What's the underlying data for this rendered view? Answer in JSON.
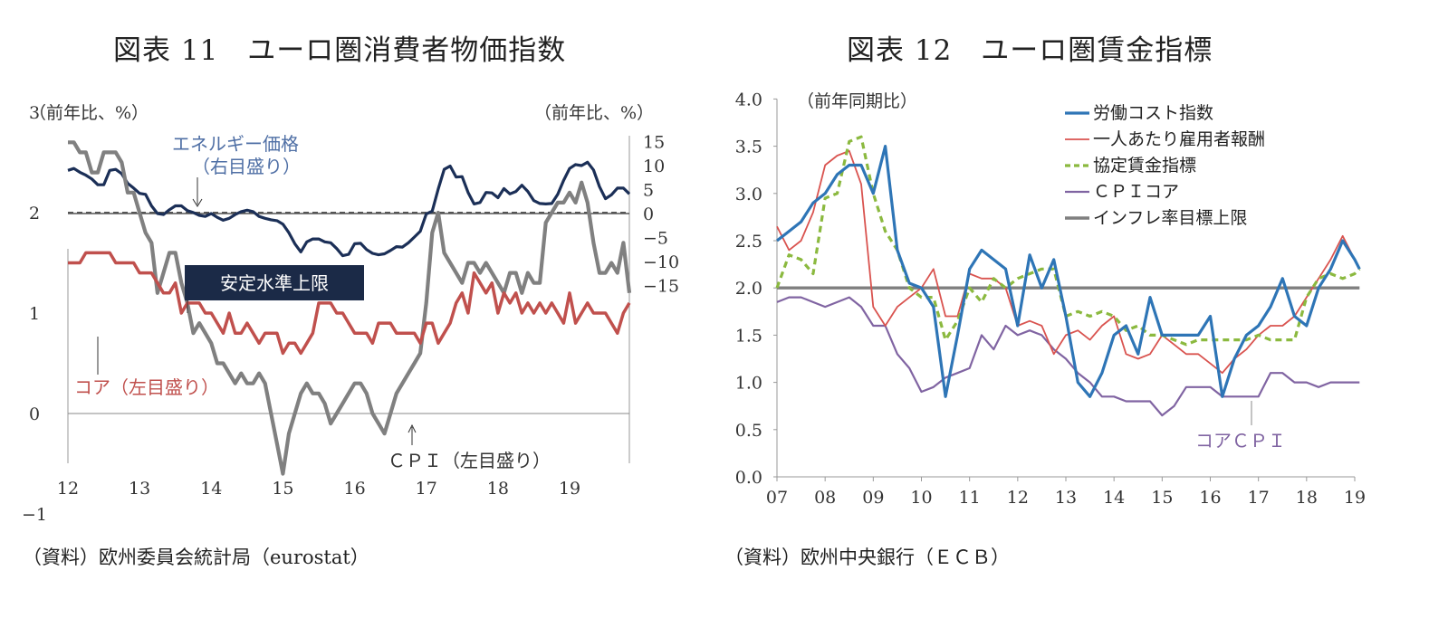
{
  "left_panel": {
    "title": "図表 11　ユーロ圏消費者物価指数",
    "source": "（資料）欧州委員会統計局（eurostat）"
  },
  "right_panel": {
    "title": "図表 12　ユーロ圏賃金指標",
    "source": "（資料）欧州中央銀行（ＥＣＢ）"
  },
  "chart_data": [
    {
      "type": "line",
      "unit_left": "（前年比、%）",
      "unit_right": "（前年比、%）",
      "left_axis": {
        "ticks": [
          3,
          2,
          1,
          0,
          -1
        ],
        "ticklabels": [
          "3",
          "2",
          "1",
          "0",
          "−1"
        ]
      },
      "right_axis": {
        "ticks": [
          15,
          10,
          5,
          0,
          -5,
          -10,
          -15
        ],
        "ticklabels": [
          "15",
          "10",
          "5",
          "0",
          "−5",
          "−10",
          "−15"
        ]
      },
      "x_ticklabels": [
        "12",
        "13",
        "14",
        "15",
        "16",
        "17",
        "18",
        "19"
      ],
      "threshold": {
        "value": 2,
        "label": "安定水準上限",
        "color": "#555555"
      },
      "annotations": {
        "energy": [
          "エネルギー価格",
          "（右目盛り）"
        ],
        "core": "コア（左目盛り）",
        "cpi": "ＣＰＩ（左目盛り）"
      },
      "colors": {
        "energy": "#1b2f57",
        "core": "#c0504d",
        "cpi": "#808080",
        "label_energy": "#4f6fa5",
        "label_core": "#c0504d",
        "callout_bg": "#1b2a47"
      },
      "series": [
        {
          "key": "energy",
          "axis": "right",
          "values": [
            9,
            9.4,
            8.6,
            8,
            7.2,
            6,
            6,
            9,
            9.2,
            8.3,
            6.3,
            5.3,
            4.2,
            4,
            1.6,
            0,
            -0.2,
            0.8,
            1.6,
            1.6,
            0.6,
            0.2,
            -0.4,
            -0.6,
            0,
            -0.8,
            -1.4,
            -1,
            -0.2,
            0.4,
            0.7,
            0.4,
            -0.6,
            -1,
            -1.3,
            -1.5,
            -2.2,
            -4,
            -6.3,
            -8,
            -5.9,
            -5.3,
            -5.3,
            -5.9,
            -6.1,
            -7.3,
            -8.8,
            -8.5,
            -6.3,
            -6.2,
            -7.5,
            -8.3,
            -8.6,
            -8.4,
            -7.7,
            -6.9,
            -7,
            -6.1,
            -4.9,
            -3.7,
            -0.1,
            0.5,
            5.1,
            9.2,
            9.9,
            7.6,
            7.7,
            4.4,
            2,
            2.3,
            4.4,
            4.3,
            3.3,
            5.2,
            4.1,
            4.6,
            5.9,
            4.6,
            2.7,
            2.1,
            2,
            2.1,
            4,
            6.9,
            9.4,
            10.2,
            10,
            10.7,
            9.1,
            5.6,
            3.1,
            3.9,
            5.3,
            5.3,
            4.1
          ]
        },
        {
          "key": "cpi",
          "axis": "left",
          "values": [
            2.7,
            2.7,
            2.6,
            2.6,
            2.4,
            2.4,
            2.6,
            2.6,
            2.6,
            2.5,
            2.2,
            2.2,
            2,
            1.8,
            1.7,
            1.2,
            1.4,
            1.6,
            1.6,
            1.3,
            1.1,
            0.8,
            0.9,
            0.8,
            0.7,
            0.5,
            0.5,
            0.4,
            0.3,
            0.4,
            0.3,
            0.3,
            0.4,
            0.3,
            0,
            -0.3,
            -0.6,
            -0.2,
            0,
            0.2,
            0.3,
            0.2,
            0.2,
            0.1,
            -0.1,
            0,
            0.1,
            0.2,
            0.3,
            0.3,
            0.2,
            0,
            -0.1,
            -0.2,
            0,
            0.2,
            0.3,
            0.4,
            0.5,
            0.6,
            1.1,
            1.8,
            2,
            1.6,
            1.5,
            1.4,
            1.3,
            1.5,
            1.5,
            1.4,
            1.5,
            1.4,
            1.3,
            1.2,
            1.4,
            1.4,
            1.2,
            1.4,
            1.3,
            1.3,
            1.9,
            2,
            2.1,
            2.1,
            2.2,
            2.1,
            2.3,
            2.1,
            1.7,
            1.4,
            1.4,
            1.5,
            1.4,
            1.7,
            1.2
          ]
        },
        {
          "key": "core",
          "axis": "left",
          "values": [
            1.5,
            1.5,
            1.5,
            1.6,
            1.6,
            1.6,
            1.6,
            1.6,
            1.5,
            1.5,
            1.5,
            1.5,
            1.4,
            1.4,
            1.4,
            1.3,
            1.2,
            1.2,
            1.3,
            1,
            1.1,
            1.1,
            1.1,
            1,
            1,
            0.9,
            0.8,
            1,
            0.8,
            0.8,
            0.9,
            0.8,
            0.7,
            0.8,
            0.8,
            0.8,
            0.6,
            0.7,
            0.7,
            0.6,
            0.7,
            0.8,
            1.1,
            1.1,
            1.1,
            1,
            1,
            0.9,
            0.8,
            0.8,
            0.8,
            0.7,
            0.9,
            0.9,
            0.9,
            0.8,
            0.8,
            0.8,
            0.8,
            0.7,
            0.9,
            0.9,
            0.7,
            0.8,
            0.9,
            1.1,
            1.2,
            1,
            1.4,
            1.3,
            1.2,
            1.3,
            1,
            1.2,
            1.1,
            1.2,
            1,
            1.1,
            1,
            1.1,
            1,
            1.1,
            1,
            0.9,
            1.2,
            0.9,
            1,
            1.1,
            1,
            1,
            1,
            0.9,
            0.8,
            1,
            1.1
          ]
        }
      ]
    },
    {
      "type": "line",
      "unit": "（前年同期比）",
      "ylim": [
        0,
        4
      ],
      "y_ticklabels": [
        "4.0",
        "3.5",
        "3.0",
        "2.5",
        "2.0",
        "1.5",
        "1.0",
        "0.5",
        "0.0"
      ],
      "x_ticklabels": [
        "07",
        "08",
        "09",
        "10",
        "11",
        "12",
        "13",
        "14",
        "15",
        "16",
        "17",
        "18",
        "19"
      ],
      "annotation_core_cpi": "コアＣＰＩ",
      "series": [
        {
          "name": "労働コスト指数",
          "color": "#2e75b6",
          "dash": "none",
          "x": [
            2007,
            2007.25,
            2007.5,
            2007.75,
            2008,
            2008.25,
            2008.5,
            2008.75,
            2009,
            2009.25,
            2009.5,
            2009.75,
            2010,
            2010.25,
            2010.5,
            2010.75,
            2011,
            2011.25,
            2011.5,
            2011.75,
            2012,
            2012.25,
            2012.5,
            2012.75,
            2013,
            2013.25,
            2013.5,
            2013.75,
            2014,
            2014.25,
            2014.5,
            2014.75,
            2015,
            2015.25,
            2015.5,
            2015.75,
            2016,
            2016.25,
            2016.5,
            2016.75,
            2017,
            2017.25,
            2017.5,
            2017.75,
            2018,
            2018.25,
            2018.5,
            2018.75,
            2019,
            2019.1
          ],
          "y": [
            2.5,
            2.6,
            2.7,
            2.9,
            3.0,
            3.2,
            3.3,
            3.3,
            3.0,
            3.5,
            2.4,
            2.05,
            2.0,
            1.8,
            0.85,
            1.5,
            2.2,
            2.4,
            2.3,
            2.2,
            1.6,
            2.35,
            2.0,
            2.3,
            1.7,
            1.0,
            0.85,
            1.1,
            1.5,
            1.6,
            1.3,
            1.9,
            1.5,
            1.5,
            1.5,
            1.5,
            1.7,
            0.85,
            1.25,
            1.5,
            1.6,
            1.8,
            2.1,
            1.7,
            1.6,
            2.0,
            2.2,
            2.5,
            2.3,
            2.2
          ]
        },
        {
          "name": "一人あたり雇用者報酬",
          "color": "#d9534f",
          "dash": "none",
          "x": [
            2007,
            2007.25,
            2007.5,
            2007.75,
            2008,
            2008.25,
            2008.5,
            2008.75,
            2009,
            2009.25,
            2009.5,
            2009.75,
            2010,
            2010.25,
            2010.5,
            2010.75,
            2011,
            2011.25,
            2011.5,
            2011.75,
            2012,
            2012.25,
            2012.5,
            2012.75,
            2013,
            2013.25,
            2013.5,
            2013.75,
            2014,
            2014.25,
            2014.5,
            2014.75,
            2015,
            2015.25,
            2015.5,
            2015.75,
            2016,
            2016.25,
            2016.5,
            2016.75,
            2017,
            2017.25,
            2017.5,
            2017.75,
            2018,
            2018.25,
            2018.5,
            2018.75,
            2019,
            2019.1
          ],
          "y": [
            2.65,
            2.4,
            2.5,
            2.8,
            3.3,
            3.4,
            3.45,
            3.1,
            1.8,
            1.6,
            1.8,
            1.9,
            2.0,
            2.2,
            1.7,
            1.7,
            2.15,
            2.1,
            2.1,
            2.0,
            1.6,
            1.65,
            1.6,
            1.3,
            1.5,
            1.55,
            1.45,
            1.6,
            1.7,
            1.3,
            1.25,
            1.3,
            1.5,
            1.4,
            1.3,
            1.3,
            1.2,
            1.1,
            1.25,
            1.35,
            1.5,
            1.6,
            1.6,
            1.7,
            1.9,
            2.1,
            2.3,
            2.55,
            2.3,
            2.2
          ]
        },
        {
          "name": "協定賃金指標",
          "color": "#8bb93f",
          "dash": "7,5",
          "x": [
            2007,
            2007.25,
            2007.5,
            2007.75,
            2008,
            2008.25,
            2008.5,
            2008.75,
            2009,
            2009.25,
            2009.5,
            2009.75,
            2010,
            2010.25,
            2010.5,
            2010.75,
            2011,
            2011.25,
            2011.5,
            2011.75,
            2012,
            2012.25,
            2012.5,
            2012.75,
            2013,
            2013.25,
            2013.5,
            2013.75,
            2014,
            2014.25,
            2014.5,
            2014.75,
            2015,
            2015.25,
            2015.5,
            2015.75,
            2016,
            2016.25,
            2016.5,
            2016.75,
            2017,
            2017.25,
            2017.5,
            2017.75,
            2018,
            2018.25,
            2018.5,
            2018.75,
            2019,
            2019.1
          ],
          "y": [
            2.0,
            2.35,
            2.3,
            2.15,
            2.95,
            3.0,
            3.55,
            3.6,
            3.0,
            2.6,
            2.4,
            2.0,
            1.9,
            1.9,
            1.45,
            1.65,
            2.0,
            1.85,
            2.1,
            2.0,
            2.1,
            2.15,
            2.2,
            2.2,
            1.7,
            1.75,
            1.7,
            1.75,
            1.7,
            1.55,
            1.6,
            1.5,
            1.5,
            1.45,
            1.4,
            1.45,
            1.45,
            1.45,
            1.45,
            1.45,
            1.5,
            1.45,
            1.45,
            1.45,
            1.9,
            2.1,
            2.15,
            2.1,
            2.15,
            2.2
          ]
        },
        {
          "name": "ＣＰＩコア",
          "color": "#8064a2",
          "dash": "none",
          "x": [
            2007,
            2007.25,
            2007.5,
            2007.75,
            2008,
            2008.25,
            2008.5,
            2008.75,
            2009,
            2009.25,
            2009.5,
            2009.75,
            2010,
            2010.25,
            2010.5,
            2010.75,
            2011,
            2011.25,
            2011.5,
            2011.75,
            2012,
            2012.25,
            2012.5,
            2012.75,
            2013,
            2013.25,
            2013.5,
            2013.75,
            2014,
            2014.25,
            2014.5,
            2014.75,
            2015,
            2015.25,
            2015.5,
            2015.75,
            2016,
            2016.25,
            2016.5,
            2016.75,
            2017,
            2017.25,
            2017.5,
            2017.75,
            2018,
            2018.25,
            2018.5,
            2018.75,
            2019,
            2019.1
          ],
          "y": [
            1.85,
            1.9,
            1.9,
            1.85,
            1.8,
            1.85,
            1.9,
            1.8,
            1.6,
            1.6,
            1.3,
            1.15,
            0.9,
            0.95,
            1.05,
            1.1,
            1.15,
            1.5,
            1.35,
            1.6,
            1.5,
            1.55,
            1.5,
            1.35,
            1.25,
            1.1,
            1.0,
            0.85,
            0.85,
            0.8,
            0.8,
            0.8,
            0.65,
            0.75,
            0.95,
            0.95,
            0.95,
            0.85,
            0.85,
            0.85,
            0.85,
            1.1,
            1.1,
            1.0,
            1.0,
            0.95,
            1.0,
            1.0,
            1.0,
            1.0
          ]
        },
        {
          "name": "インフレ率目標上限",
          "color": "#7f7f7f",
          "dash": "none",
          "x": [
            2007,
            2019.1
          ],
          "y": [
            2.0,
            2.0
          ]
        }
      ]
    }
  ]
}
